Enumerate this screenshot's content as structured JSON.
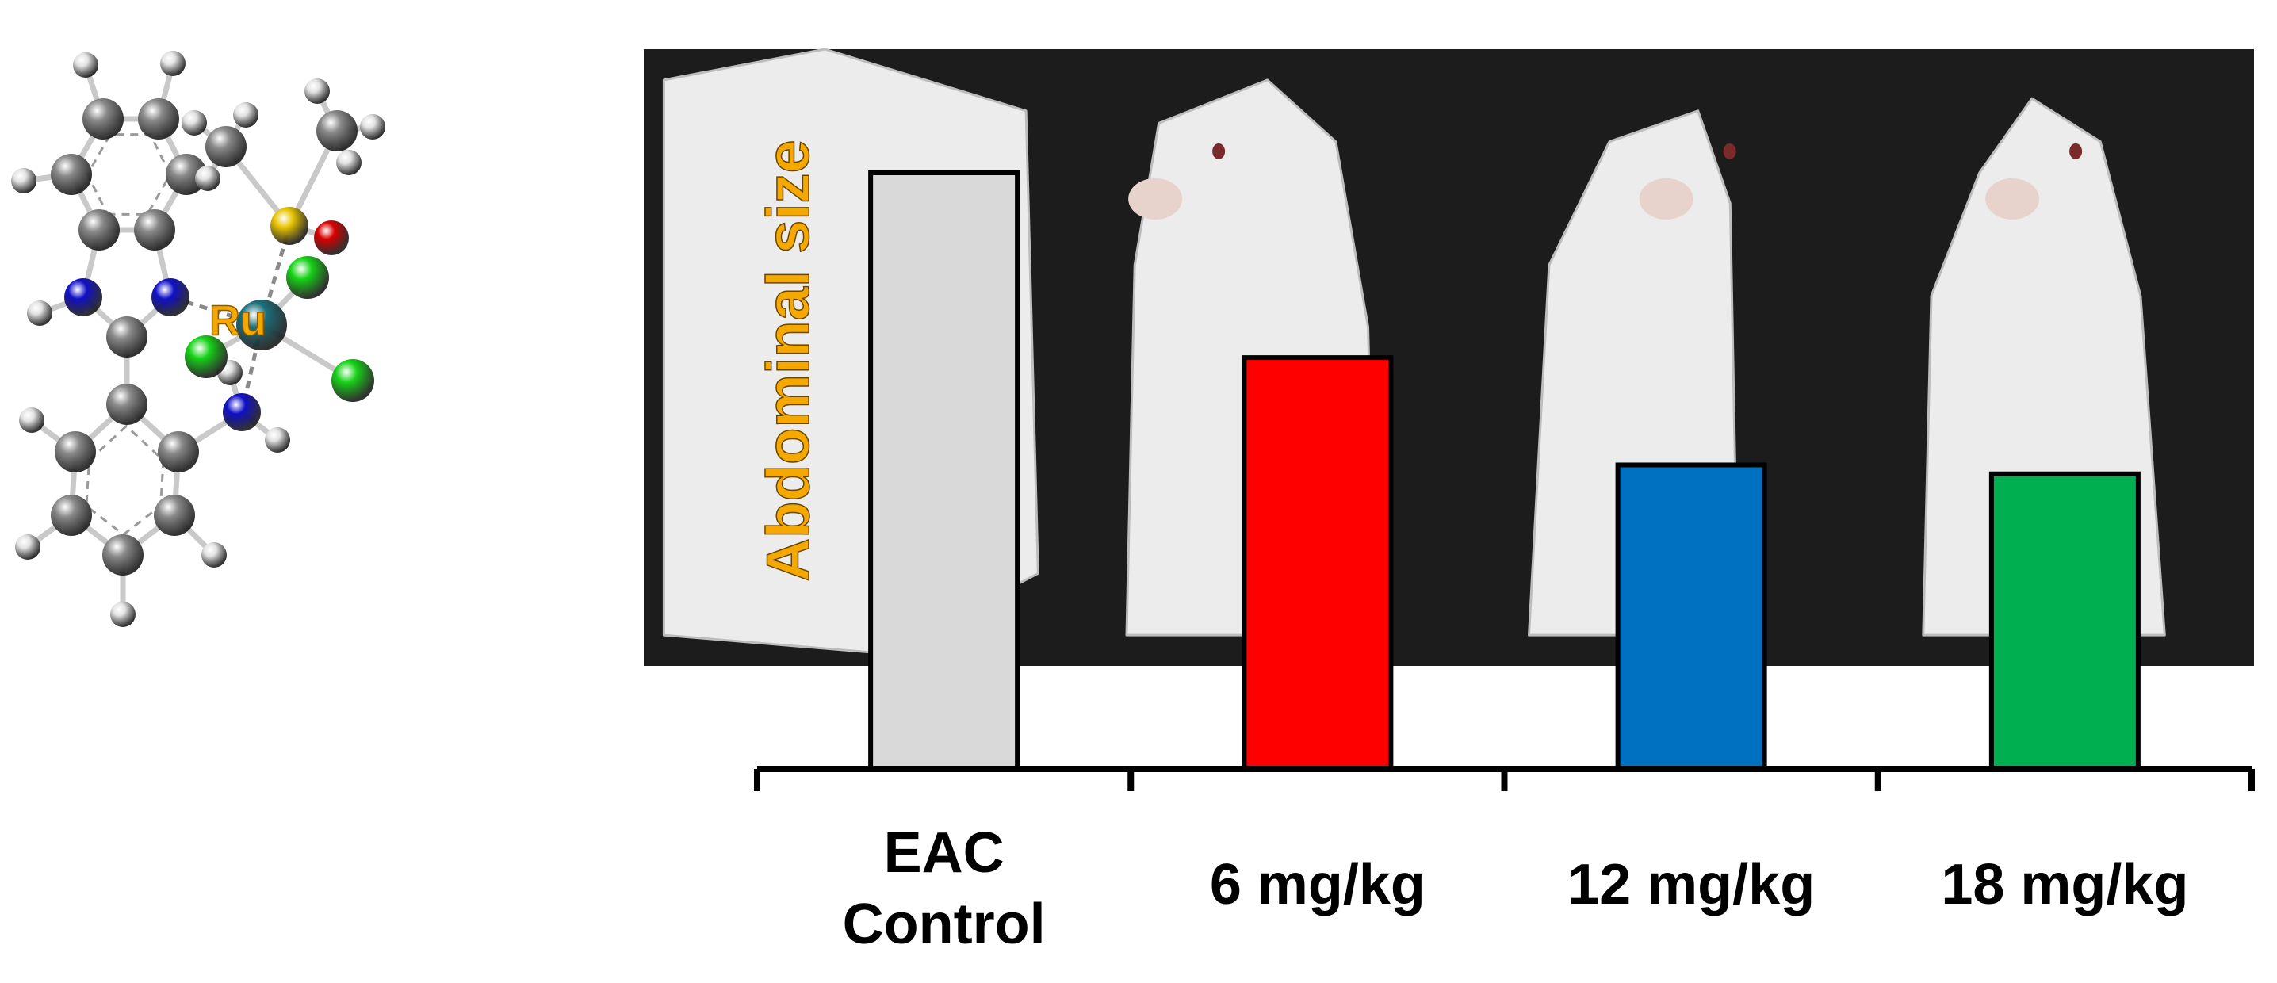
{
  "molecule": {
    "metal_label": "Ru",
    "colors": {
      "carbon": "#8a8a8a",
      "hydrogen": "#e2e2e2",
      "nitrogen": "#1010c8",
      "chlorine": "#16d316",
      "sulfur": "#e8c400",
      "oxygen": "#d80000",
      "ruthenium": "#1b6f7a",
      "bond": "#c9c9c9",
      "label": "#f5a800"
    }
  },
  "photos": {
    "panel_names": [
      "eac-control-mouse-photo",
      "6-mgkg-mouse-photo",
      "12-mgkg-mouse-photo",
      "18-mgkg-mouse-photo"
    ],
    "backdrop_color": "#1c1c1c",
    "mouse_color": "#ececec"
  },
  "chart_data": {
    "type": "bar",
    "categories": [
      "EAC\nControl",
      "6 mg/kg",
      "12 mg/kg",
      "18 mg/kg"
    ],
    "values": [
      100,
      69,
      51,
      49.5
    ],
    "ylabel": "Abdominal size",
    "ylim": [
      0,
      100
    ],
    "grid": false,
    "colors": [
      "#d9d9d9",
      "#ff0000",
      "#0070c0",
      "#00b050"
    ],
    "ylabel_color": "#f5a800"
  }
}
